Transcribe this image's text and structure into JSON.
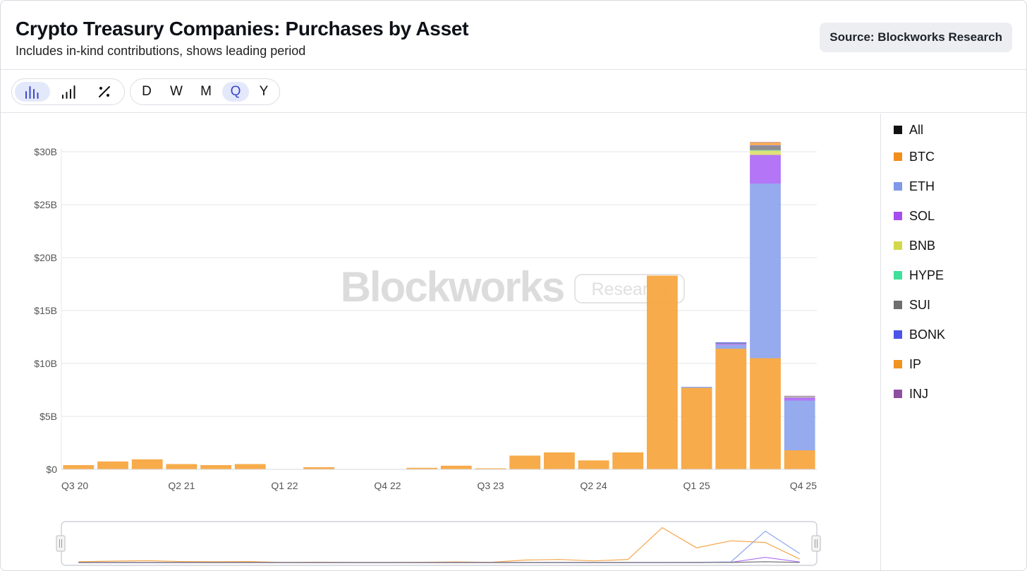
{
  "header": {
    "title": "Crypto Treasury Companies: Purchases by Asset",
    "subtitle": "Includes in-kind contributions, shows leading period",
    "source": "Source: Blockworks Research"
  },
  "toolbar": {
    "chart_modes": [
      {
        "name": "bar-chart-icon",
        "active": true
      },
      {
        "name": "signal-bars-icon",
        "active": false
      },
      {
        "name": "percent-icon",
        "active": false
      }
    ],
    "periods": [
      {
        "label": "D",
        "active": false
      },
      {
        "label": "W",
        "active": false
      },
      {
        "label": "M",
        "active": false
      },
      {
        "label": "Q",
        "active": true
      },
      {
        "label": "Y",
        "active": false
      }
    ]
  },
  "watermark": {
    "brand": "Blockworks",
    "tag": "Research"
  },
  "legend": [
    {
      "label": "All",
      "color": "#111111"
    },
    {
      "label": "BTC",
      "color": "#f28e1c"
    },
    {
      "label": "ETH",
      "color": "#7f98e8"
    },
    {
      "label": "SOL",
      "color": "#a64df0"
    },
    {
      "label": "BNB",
      "color": "#d3d84a"
    },
    {
      "label": "HYPE",
      "color": "#3ee09a"
    },
    {
      "label": "SUI",
      "color": "#6e6e6e"
    },
    {
      "label": "BONK",
      "color": "#4c55e8"
    },
    {
      "label": "IP",
      "color": "#f09320"
    },
    {
      "label": "INJ",
      "color": "#8e4fa0"
    }
  ],
  "chart_data": {
    "type": "bar",
    "stacked": true,
    "categories": [
      "Q3 20",
      "Q4 20",
      "Q1 21",
      "Q2 21",
      "Q3 21",
      "Q4 21",
      "Q1 22",
      "Q2 22",
      "Q3 22",
      "Q4 22",
      "Q1 23",
      "Q2 23",
      "Q3 23",
      "Q4 23",
      "Q1 24",
      "Q2 24",
      "Q3 24",
      "Q4 24",
      "Q1 25",
      "Q2 25",
      "Q3 25",
      "Q4 25"
    ],
    "tick_labels": [
      "Q3 20",
      "Q2 21",
      "Q1 22",
      "Q4 22",
      "Q3 23",
      "Q2 24",
      "Q1 25",
      "Q4 25"
    ],
    "y_ticks": [
      "$0",
      "$5B",
      "$10B",
      "$15B",
      "$20B",
      "$25B",
      "$30B"
    ],
    "ylim": [
      0,
      30000000000
    ],
    "series": [
      {
        "name": "BTC",
        "color": "#f7a640",
        "values": [
          400000000.0,
          750000000.0,
          950000000.0,
          500000000.0,
          400000000.0,
          500000000.0,
          20000000.0,
          200000000.0,
          20000000.0,
          20000000.0,
          150000000.0,
          350000000.0,
          100000000.0,
          1300000000.0,
          1600000000.0,
          850000000.0,
          1600000000.0,
          18300000000.0,
          7700000000.0,
          11400000000.0,
          10500000000.0,
          1800000000.0
        ]
      },
      {
        "name": "ETH",
        "color": "#8fa6ec",
        "values": [
          0,
          0,
          0,
          0,
          0,
          0,
          0,
          0,
          0,
          0,
          0,
          0,
          0,
          0,
          0,
          0,
          0,
          0,
          100000000.0,
          350000000.0,
          16500000000.0,
          4700000000.0
        ]
      },
      {
        "name": "SOL",
        "color": "#b06ef5",
        "values": [
          0,
          0,
          0,
          0,
          0,
          0,
          0,
          0,
          0,
          0,
          0,
          0,
          0,
          0,
          0,
          0,
          0,
          0,
          0,
          100000000.0,
          2700000000.0,
          300000000.0
        ]
      },
      {
        "name": "BNB",
        "color": "#dde070",
        "values": [
          0,
          0,
          0,
          0,
          0,
          0,
          0,
          0,
          0,
          0,
          0,
          0,
          0,
          0,
          0,
          0,
          0,
          0,
          0,
          0,
          400000000.0,
          50000000.0
        ]
      },
      {
        "name": "HYPE",
        "color": "#6ee8b2",
        "values": [
          0,
          0,
          0,
          0,
          0,
          0,
          0,
          0,
          0,
          0,
          0,
          0,
          0,
          0,
          0,
          0,
          0,
          0,
          0,
          0,
          50000000.0,
          20000000.0
        ]
      },
      {
        "name": "SUI",
        "color": "#888888",
        "values": [
          0,
          0,
          0,
          0,
          0,
          0,
          0,
          0,
          0,
          0,
          0,
          0,
          0,
          0,
          0,
          0,
          0,
          0,
          0,
          50000000.0,
          400000000.0,
          20000000.0
        ]
      },
      {
        "name": "BONK",
        "color": "#6670ee",
        "values": [
          0,
          0,
          0,
          0,
          0,
          0,
          0,
          0,
          0,
          0,
          0,
          0,
          0,
          0,
          0,
          0,
          0,
          0,
          0,
          100000000.0,
          50000000.0,
          20000000.0
        ]
      },
      {
        "name": "IP",
        "color": "#f4a850",
        "values": [
          0,
          0,
          0,
          0,
          0,
          0,
          0,
          0,
          0,
          0,
          0,
          0,
          0,
          0,
          0,
          0,
          0,
          0,
          0,
          0,
          300000000.0,
          20000000.0
        ]
      },
      {
        "name": "INJ",
        "color": "#a772b5",
        "values": [
          0,
          0,
          0,
          0,
          0,
          0,
          0,
          0,
          0,
          0,
          0,
          0,
          0,
          0,
          0,
          0,
          0,
          0,
          0,
          0,
          20000000.0,
          20000000.0
        ]
      }
    ],
    "grid": true,
    "legend_position": "right"
  }
}
